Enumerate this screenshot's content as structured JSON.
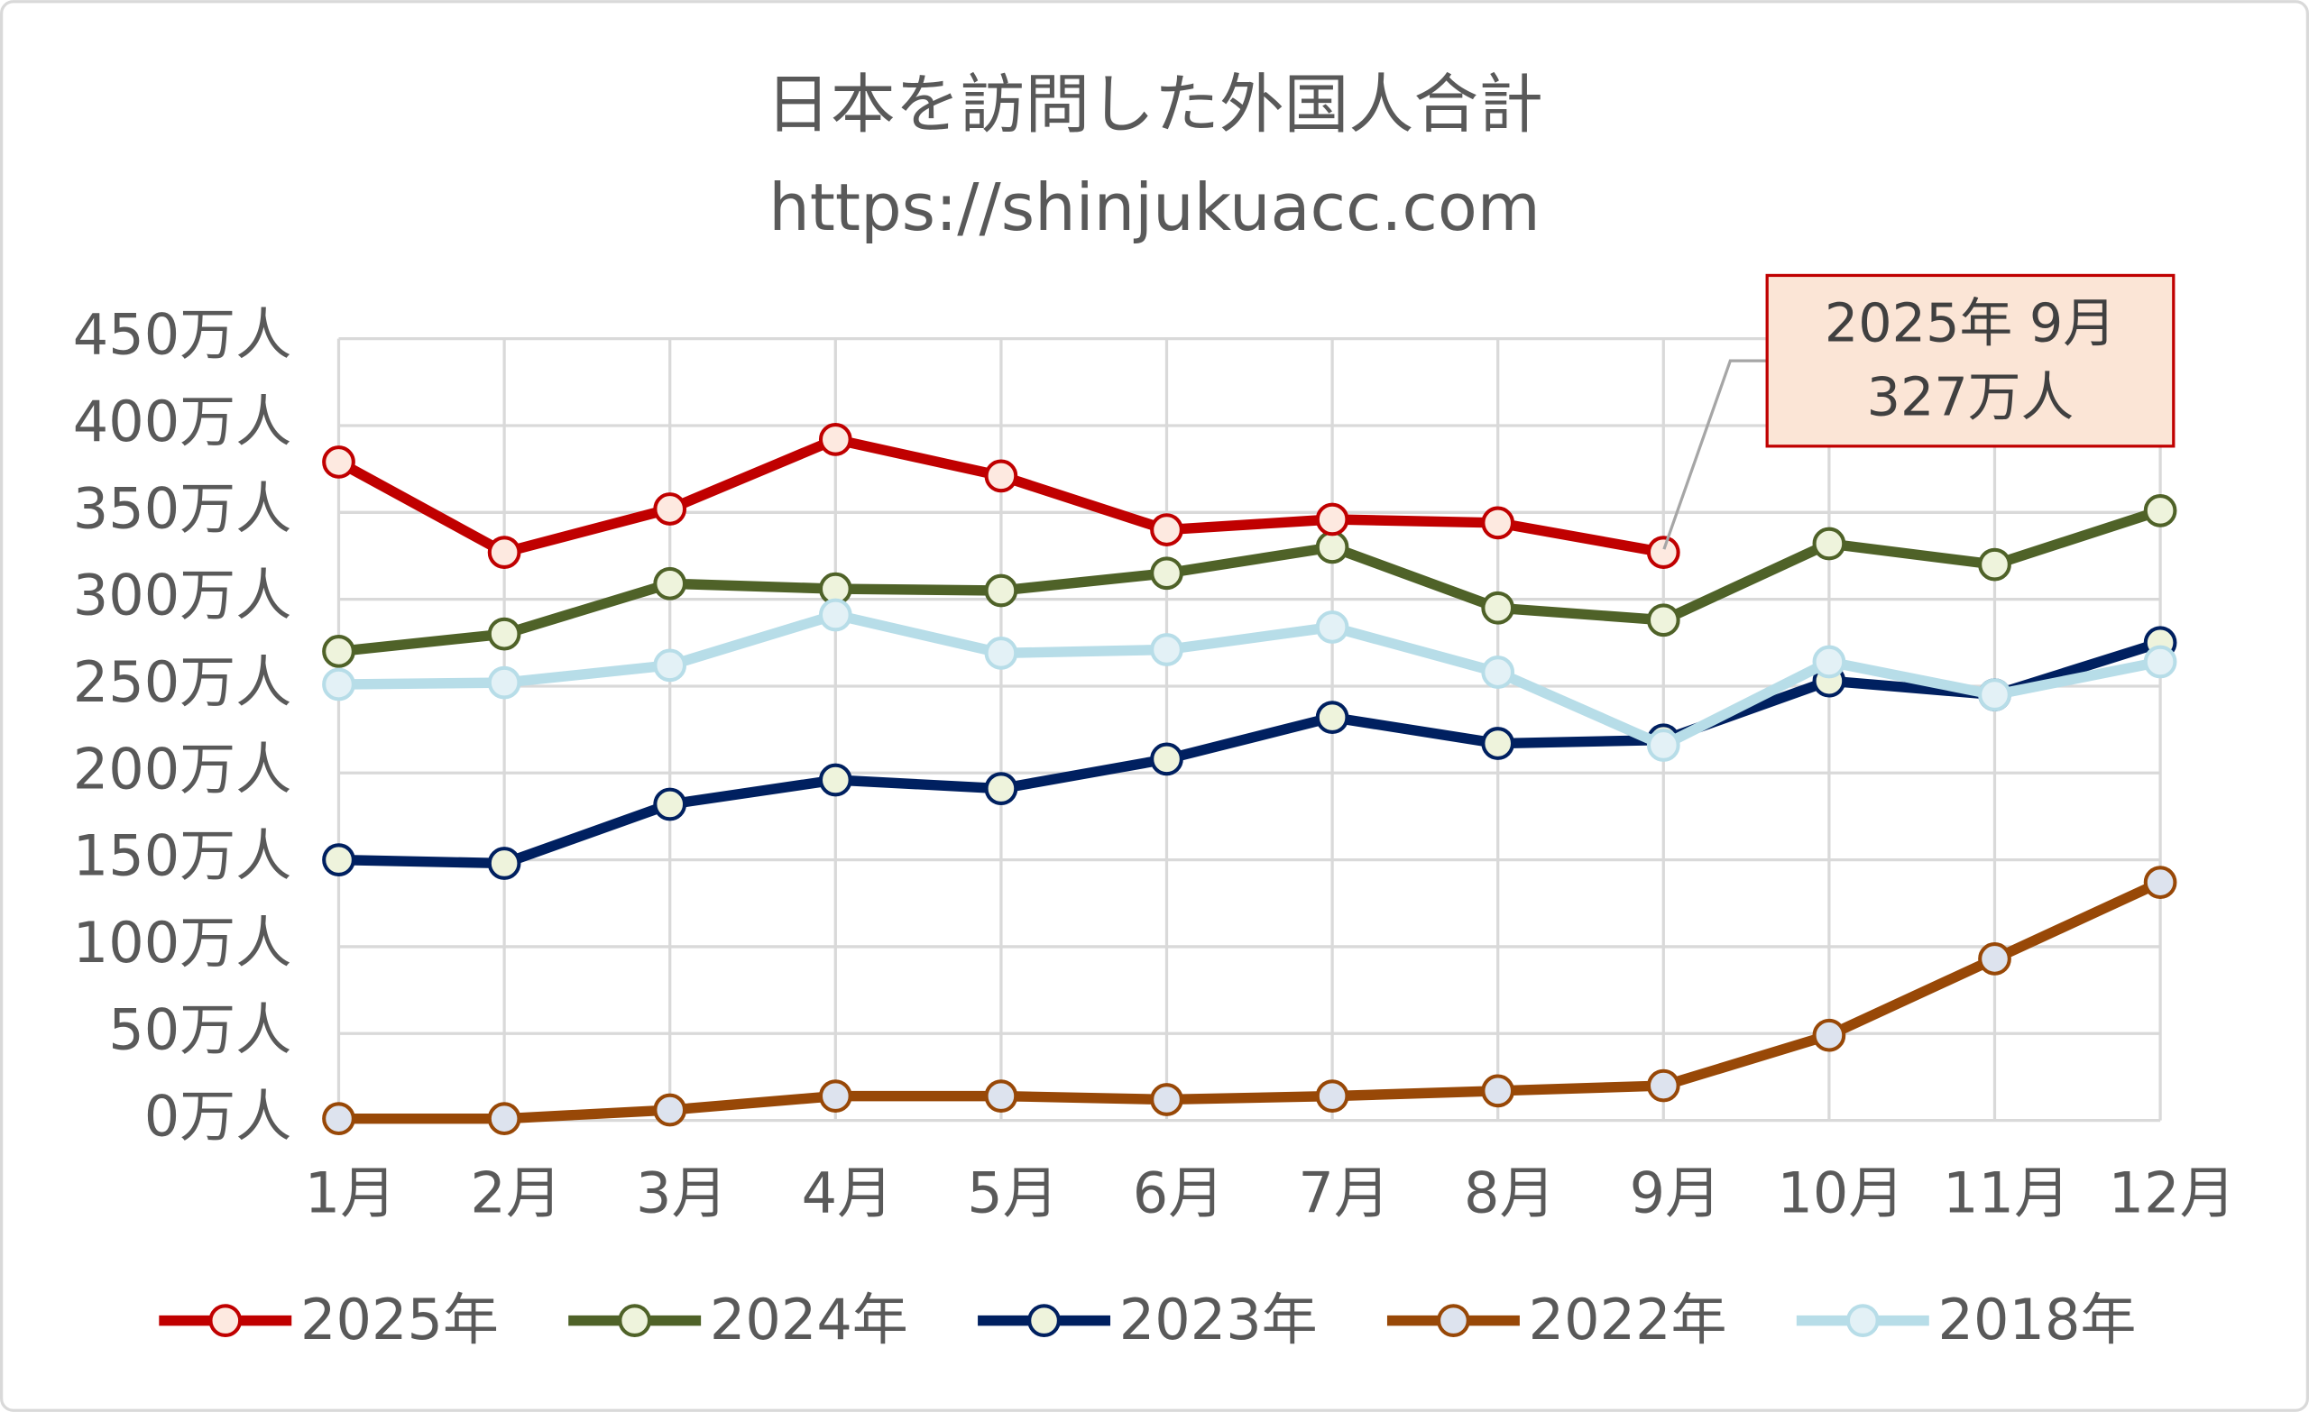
{
  "chart_data": {
    "type": "line",
    "title": [
      "日本を訪問した外国人合計",
      "https://shinjukuacc.com"
    ],
    "categories": [
      "1月",
      "2月",
      "3月",
      "4月",
      "5月",
      "6月",
      "7月",
      "8月",
      "9月",
      "10月",
      "11月",
      "12月"
    ],
    "series": [
      {
        "name": "2025年",
        "color": "#c00000",
        "marker_fill": "#fde9e0",
        "values": [
          379,
          327,
          352,
          392,
          371,
          340,
          346,
          344,
          327,
          null,
          null,
          null
        ],
        "value_labels": [
          null,
          null,
          null,
          null,
          null,
          null,
          null,
          null,
          "327万人",
          null,
          null,
          null
        ]
      },
      {
        "name": "2024年",
        "color": "#4f6228",
        "marker_fill": "#eef3dc",
        "values": [
          270,
          280,
          309,
          306,
          305,
          315,
          330,
          295,
          288,
          332,
          320,
          351
        ]
      },
      {
        "name": "2023年",
        "color": "#002060",
        "marker_fill": "#eef3dc",
        "values": [
          150,
          148,
          182,
          196,
          191,
          208,
          232,
          217,
          219,
          253,
          245,
          275
        ]
      },
      {
        "name": "2022年",
        "color": "#984807",
        "marker_fill": "#dde3ee",
        "values": [
          1,
          1,
          6,
          14,
          14,
          12,
          14,
          17,
          20,
          49,
          93,
          137
        ]
      },
      {
        "name": "2018年",
        "color": "#b7dde8",
        "marker_fill": "#e3f1f6",
        "values": [
          251,
          252,
          262,
          291,
          269,
          271,
          284,
          258,
          216,
          264,
          245,
          264
        ]
      }
    ],
    "annotation": "2025年 9月",
    "ylim": [
      0,
      450
    ],
    "yticks": [
      {
        "value": 0,
        "label": "0万人"
      },
      {
        "value": 50,
        "label": "50万人"
      },
      {
        "value": 100,
        "label": "100万人"
      },
      {
        "value": 150,
        "label": "150万人"
      },
      {
        "value": 200,
        "label": "200万人"
      },
      {
        "value": 250,
        "label": "250万人"
      },
      {
        "value": 300,
        "label": "300万人"
      },
      {
        "value": 350,
        "label": "350万人"
      },
      {
        "value": 400,
        "label": "400万人"
      },
      {
        "value": 450,
        "label": "450万人"
      }
    ],
    "grid": true,
    "legend": "bottom"
  }
}
